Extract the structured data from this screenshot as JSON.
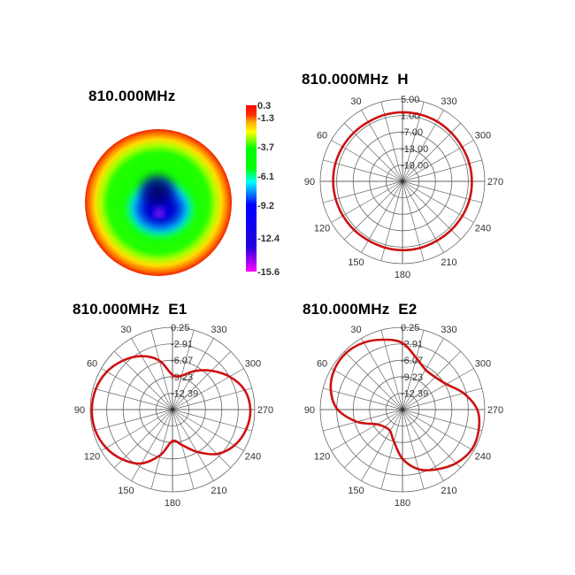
{
  "chart_data": [
    {
      "type": "heatmap",
      "title": "810.000MHz",
      "colorbar": {
        "ticks": [
          "0.3",
          "-1.3",
          "-3.7",
          "-6.1",
          "-9.2",
          "-12.4",
          "-15.6"
        ],
        "range": [
          -15.6,
          0.3
        ],
        "colors": [
          "#ff0000",
          "#ff9900",
          "#ffff00",
          "#00ff00",
          "#00ffff",
          "#0000ff",
          "#2200cc",
          "#ff00ff"
        ]
      }
    },
    {
      "type": "line",
      "coordinate_system": "polar",
      "title": "810.000MHz  H",
      "angle_ticks": [
        "0",
        "30",
        "60",
        "90",
        "120",
        "150",
        "180",
        "210",
        "240",
        "270",
        "300",
        "330"
      ],
      "angle_labels_shown": [
        "30",
        "60",
        "90",
        "120",
        "150",
        "180",
        "210",
        "240",
        "270",
        "300",
        "330"
      ],
      "angle_direction": "counterclockwise, 0 at top",
      "radial_ticks": [
        "5.00",
        "1.00",
        "-7.00",
        "-13.00",
        "-19.00"
      ],
      "radial_range": [
        -25,
        5
      ],
      "color": "#cc1111",
      "theta": [
        0,
        15,
        30,
        45,
        60,
        75,
        90,
        105,
        120,
        135,
        150,
        165,
        180,
        195,
        210,
        225,
        240,
        255,
        270,
        285,
        300,
        315,
        330,
        345
      ],
      "r": [
        0.2,
        0.1,
        0.0,
        0.1,
        0.2,
        0.3,
        0.3,
        0.2,
        0.1,
        0.0,
        -0.1,
        0.0,
        0.1,
        0.1,
        0.0,
        0.1,
        0.2,
        0.3,
        0.3,
        0.2,
        0.1,
        0.1,
        0.2,
        0.2
      ]
    },
    {
      "type": "line",
      "coordinate_system": "polar",
      "title": "810.000MHz  E1",
      "angle_labels_shown": [
        "30",
        "60",
        "90",
        "120",
        "150",
        "180",
        "210",
        "240",
        "270",
        "300",
        "330"
      ],
      "angle_direction": "counterclockwise, 0 at top",
      "radial_ticks": [
        "0.25",
        "-2.91",
        "-6.07",
        "-9.23",
        "-12.39"
      ],
      "radial_range": [
        -15.55,
        0.25
      ],
      "color": "#cc1111",
      "theta": [
        0,
        15,
        30,
        45,
        60,
        75,
        90,
        105,
        120,
        135,
        150,
        165,
        180,
        195,
        210,
        225,
        240,
        255,
        270,
        285,
        300,
        315,
        330,
        345
      ],
      "r": [
        -8.9,
        -5.8,
        -3.7,
        -2.2,
        -1.0,
        -0.3,
        -0.05,
        -0.2,
        -0.85,
        -2.0,
        -3.6,
        -6.5,
        -9.5,
        -8.5,
        -6.2,
        -3.5,
        -1.8,
        -0.9,
        -0.6,
        -1.2,
        -2.9,
        -5.0,
        -7.0,
        -8.8
      ]
    },
    {
      "type": "line",
      "coordinate_system": "polar",
      "title": "810.000MHz  E2",
      "angle_labels_shown": [
        "30",
        "60",
        "90",
        "120",
        "150",
        "180",
        "210",
        "240",
        "270",
        "300",
        "330"
      ],
      "angle_direction": "counterclockwise, 0 at top",
      "radial_ticks": [
        "0.25",
        "-2.91",
        "-6.07",
        "-9.23",
        "-12.39"
      ],
      "radial_range": [
        -15.55,
        0.25
      ],
      "color": "#cc1111",
      "theta": [
        0,
        15,
        30,
        45,
        60,
        75,
        90,
        105,
        120,
        135,
        150,
        165,
        180,
        195,
        210,
        225,
        240,
        255,
        270,
        285,
        300,
        315,
        330,
        345
      ],
      "r": [
        -2.75,
        -1.65,
        -0.7,
        -0.2,
        -0.4,
        -1.3,
        -3.1,
        -6.5,
        -9.9,
        -10.8,
        -10.8,
        -9.2,
        -6.1,
        -3.7,
        -2.3,
        -1.0,
        -0.2,
        -0.4,
        -1.2,
        -3.4,
        -5.8,
        -6.7,
        -6.7,
        -5.3
      ]
    }
  ]
}
